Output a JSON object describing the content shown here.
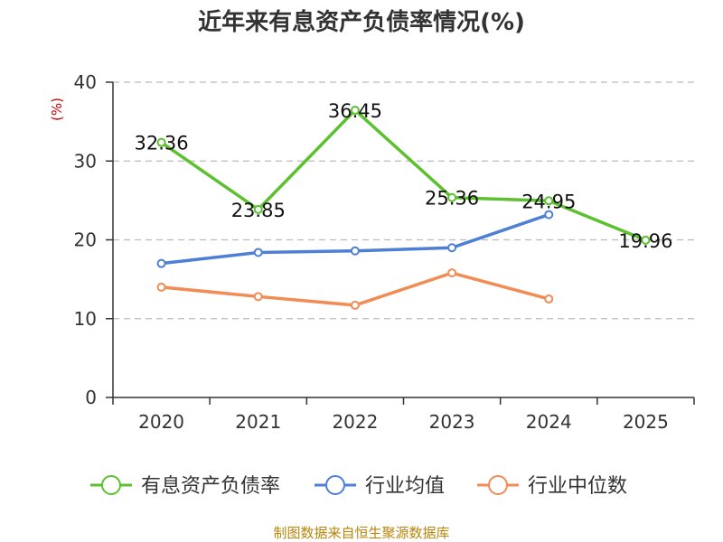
{
  "chart_data": {
    "type": "line",
    "title": "近年来有息资产负债率情况(%)",
    "unit_label": "(%)",
    "source": "制图数据来自恒生聚源数据库",
    "categories": [
      "2020",
      "2021",
      "2022",
      "2023",
      "2024",
      "2025"
    ],
    "ylim": [
      0,
      40
    ],
    "yticks": [
      0,
      10,
      20,
      30,
      40
    ],
    "grid": true,
    "legend_position": "bottom",
    "series": [
      {
        "name": "有息资产负债率",
        "color": "#5cc12e",
        "values": [
          32.36,
          23.85,
          36.45,
          25.36,
          24.95,
          19.96
        ],
        "labels": [
          "32.36",
          "23.85",
          "36.45",
          "25.36",
          "24.95",
          "19.96"
        ]
      },
      {
        "name": "行业均值",
        "color": "#4e7fd6",
        "values": [
          17.0,
          18.4,
          18.6,
          19.0,
          23.2,
          null
        ]
      },
      {
        "name": "行业中位数",
        "color": "#f28b54",
        "values": [
          14.0,
          12.8,
          11.7,
          15.8,
          12.5,
          null
        ]
      }
    ]
  }
}
